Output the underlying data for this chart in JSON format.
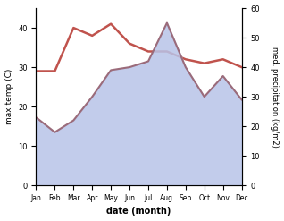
{
  "months": [
    "Jan",
    "Feb",
    "Mar",
    "Apr",
    "May",
    "Jun",
    "Jul",
    "Aug",
    "Sep",
    "Oct",
    "Nov",
    "Dec"
  ],
  "max_temp": [
    29,
    29,
    40,
    38,
    41,
    36,
    34,
    34,
    32,
    31,
    32,
    30
  ],
  "precipitation": [
    23,
    18,
    22,
    30,
    39,
    40,
    42,
    55,
    40,
    30,
    37,
    29
  ],
  "temp_color": "#c0534d",
  "precip_line_color": "#9b6b7a",
  "precip_fill_color": "#b8c4e8",
  "temp_ylim": [
    0,
    45
  ],
  "precip_ylim": [
    0,
    60
  ],
  "xlabel": "date (month)",
  "ylabel_left": "max temp (C)",
  "ylabel_right": "med. precipitation (kg/m2)",
  "background_color": "#ffffff"
}
